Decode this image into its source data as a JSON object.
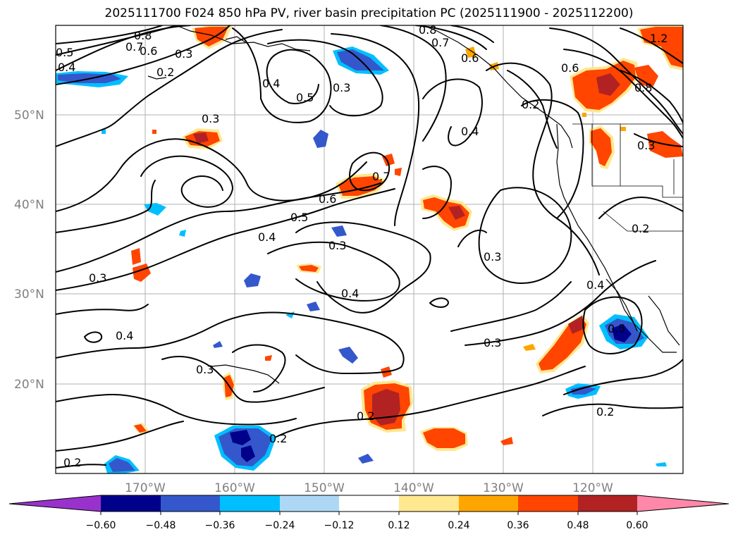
{
  "title": "2025111700 F024 850 hPa PV, river basin precipitation PC (2025111900 - 2025112200)",
  "latitude_labels": [
    "50°N",
    "40°N",
    "30°N",
    "20°N"
  ],
  "longitude_labels": [
    "170°W",
    "160°W",
    "150°W",
    "140°W",
    "130°W",
    "120°W"
  ],
  "contour_labels": [
    "0.8",
    "0.7",
    "0.6",
    "0.5",
    "0.4",
    "0.3",
    "0.2",
    "0.3",
    "0.5",
    "0.4",
    "0.3",
    "0.8",
    "0.7",
    "0.6",
    "0.6",
    "0.4",
    "0.2",
    "1.2",
    "0.8",
    "0.3",
    "0.7",
    "0.6",
    "0.5",
    "0.4",
    "0.3",
    "0.3",
    "0.2",
    "0.3",
    "0.4",
    "0.4",
    "0.4",
    "0.3",
    "0.3",
    "0.5",
    "0.2",
    "0.2",
    "0.2",
    "0.2"
  ],
  "colorbar": {
    "colors": [
      "#9932cc",
      "#00008b",
      "#3458cc",
      "#00bfff",
      "#add8f5",
      "#ffffff",
      "#ffe88f",
      "#ffa500",
      "#ff4500",
      "#b22222",
      "#ff88aa"
    ],
    "ticks": [
      "−0.60",
      "−0.48",
      "−0.36",
      "−0.24",
      "−0.12",
      "0.12",
      "0.24",
      "0.36",
      "0.48",
      "0.60"
    ]
  },
  "legend_colors": {
    "neg_strong": "#00008b",
    "neg_mid": "#3458cc",
    "neg_weak": "#00bfff",
    "neg_faint": "#add8f5",
    "pos_faint": "#ffe88f",
    "pos_weak": "#ffa500",
    "pos_mid": "#ff4500",
    "pos_strong": "#b22222"
  }
}
